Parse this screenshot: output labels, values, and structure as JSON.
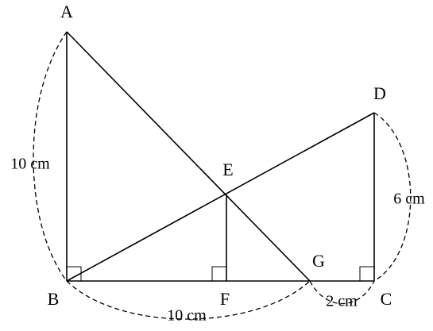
{
  "points": {
    "A": "A",
    "B": "B",
    "C": "C",
    "D": "D",
    "E": "E",
    "F": "F",
    "G": "G"
  },
  "lengths": {
    "AB": "10 cm",
    "DC": "6 cm",
    "BG": "10 cm",
    "GC": "2 cm"
  }
}
